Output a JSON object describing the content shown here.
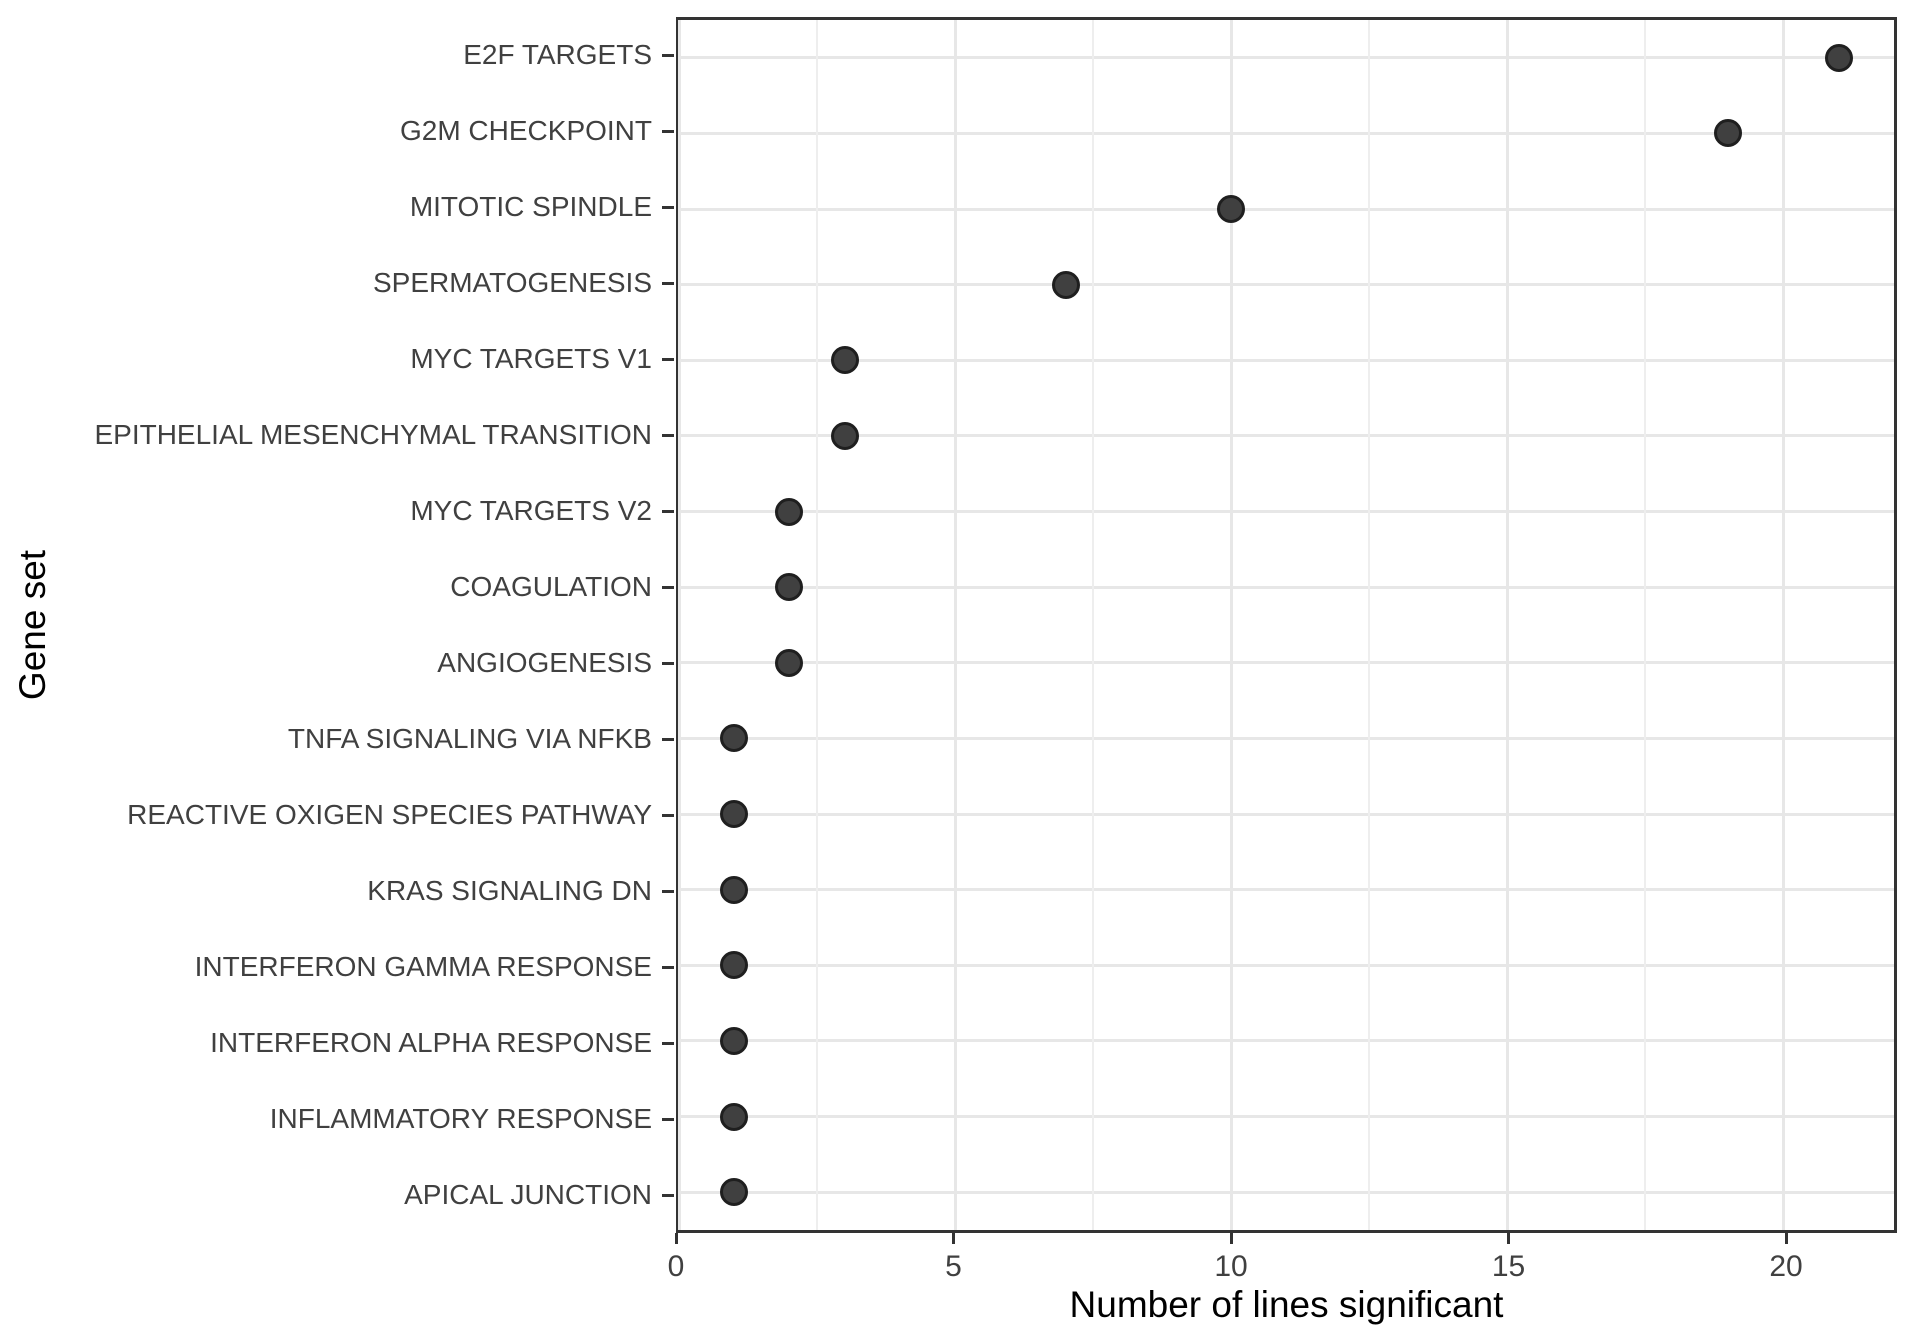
{
  "chart_data": {
    "type": "scatter",
    "subtype": "cleveland-dot-plot",
    "orientation": "horizontal",
    "title": "",
    "xlabel": "Number of lines significant",
    "ylabel": "Gene set",
    "categories": [
      "E2F TARGETS",
      "G2M CHECKPOINT",
      "MITOTIC SPINDLE",
      "SPERMATOGENESIS",
      "MYC TARGETS V1",
      "EPITHELIAL MESENCHYMAL TRANSITION",
      "MYC TARGETS V2",
      "COAGULATION",
      "ANGIOGENESIS",
      "TNFA SIGNALING VIA NFKB",
      "REACTIVE OXIGEN SPECIES PATHWAY",
      "KRAS SIGNALING DN",
      "INTERFERON GAMMA RESPONSE",
      "INTERFERON ALPHA RESPONSE",
      "INFLAMMATORY RESPONSE",
      "APICAL JUNCTION"
    ],
    "values": [
      21,
      19,
      10,
      7,
      3,
      3,
      2,
      2,
      2,
      1,
      1,
      1,
      1,
      1,
      1,
      1
    ],
    "xlim": [
      0,
      22
    ],
    "x_major_ticks": [
      0,
      5,
      10,
      15,
      20
    ],
    "x_tick_labels": [
      "0",
      "5",
      "10",
      "15",
      "20"
    ],
    "x_minor_gridlines": [
      2.5,
      7.5,
      12.5,
      17.5
    ],
    "grid": "vertical major+minor gridlines; one horizontal gridline per category row",
    "legend": "none",
    "colors": {
      "point_fill": "#404040",
      "point_stroke": "#1f1f1f",
      "gridline_major": "#e7e7e7",
      "gridline_minor": "#eeeeee",
      "panel_border": "#333333",
      "tick_mark": "#333333",
      "tick_label": "#404040",
      "axis_title": "#000000",
      "background": "#ffffff"
    }
  }
}
